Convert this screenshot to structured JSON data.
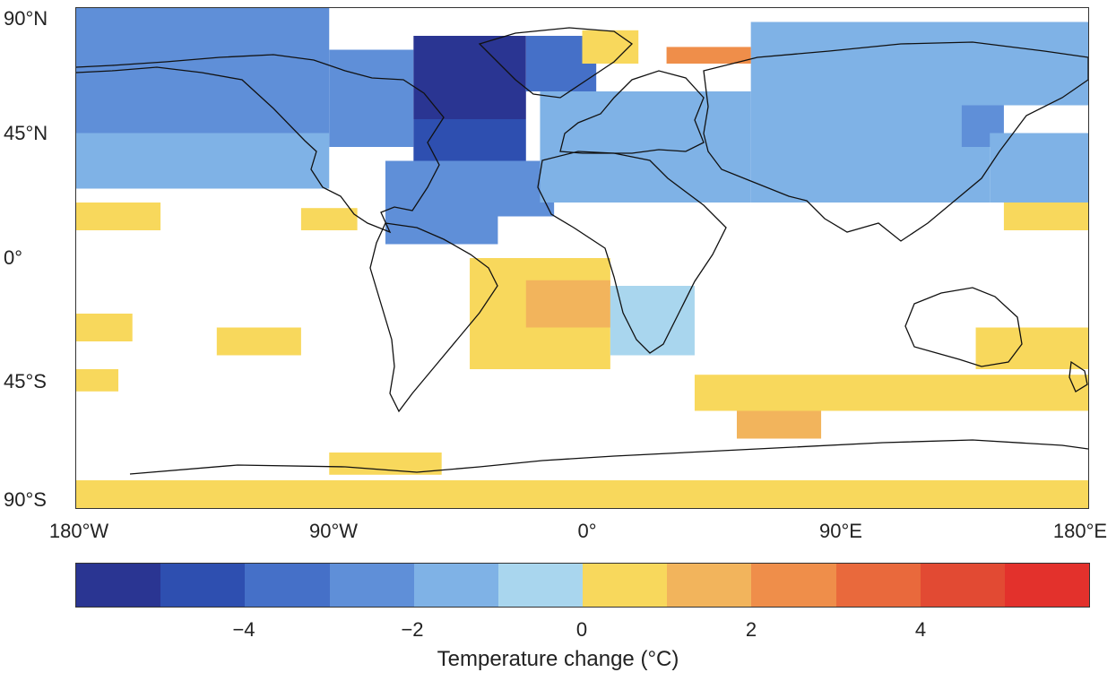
{
  "map": {
    "lat_labels": [
      "90°N",
      "45°N",
      "0°",
      "45°S",
      "90°S"
    ],
    "lon_labels": [
      "180°W",
      "90°W",
      "0°",
      "90°E",
      "180°E"
    ]
  },
  "legend": {
    "title": "Temperature change (°C)",
    "tick_labels": [
      "−4",
      "−2",
      "0",
      "2",
      "4"
    ],
    "colors": [
      "#2a3592",
      "#2e4fb0",
      "#4570c8",
      "#5f8fd8",
      "#7fb2e6",
      "#a9d6ee",
      "#f8d85c",
      "#f2b45c",
      "#ef8e4a",
      "#e9693c",
      "#e24a33",
      "#e3312c"
    ]
  },
  "chart_data": {
    "type": "heatmap",
    "title": "",
    "colorbar_label": "Temperature change (°C)",
    "colorbar_bins": [
      -6,
      -5,
      -4,
      -3,
      -2,
      -1,
      0,
      1,
      2,
      3,
      4,
      5,
      6
    ],
    "xlim": [
      -180,
      180
    ],
    "ylim": [
      -90,
      90
    ],
    "regions": [
      {
        "lon": [
          -180,
          -90
        ],
        "lat": [
          45,
          90
        ],
        "value": -2.5
      },
      {
        "lon": [
          -180,
          -90
        ],
        "lat": [
          25,
          45
        ],
        "value": -1.5
      },
      {
        "lon": [
          -90,
          -60
        ],
        "lat": [
          40,
          75
        ],
        "value": -3
      },
      {
        "lon": [
          -60,
          -20
        ],
        "lat": [
          50,
          80
        ],
        "value": -5.5
      },
      {
        "lon": [
          -60,
          -20
        ],
        "lat": [
          35,
          50
        ],
        "value": -4.5
      },
      {
        "lon": [
          -70,
          -10
        ],
        "lat": [
          15,
          35
        ],
        "value": -3
      },
      {
        "lon": [
          -70,
          -30
        ],
        "lat": [
          5,
          15
        ],
        "value": -2.5
      },
      {
        "lon": [
          -20,
          5
        ],
        "lat": [
          60,
          80
        ],
        "value": -4
      },
      {
        "lon": [
          0,
          20
        ],
        "lat": [
          70,
          82
        ],
        "value": 0
      },
      {
        "lon": [
          -15,
          60
        ],
        "lat": [
          20,
          60
        ],
        "value": -2
      },
      {
        "lon": [
          60,
          180
        ],
        "lat": [
          55,
          85
        ],
        "value": -1.5
      },
      {
        "lon": [
          60,
          145
        ],
        "lat": [
          20,
          55
        ],
        "value": -2
      },
      {
        "lon": [
          135,
          150
        ],
        "lat": [
          40,
          55
        ],
        "value": -3
      },
      {
        "lon": [
          145,
          180
        ],
        "lat": [
          20,
          45
        ],
        "value": -1.5
      },
      {
        "lon": [
          -180,
          -150
        ],
        "lat": [
          10,
          20
        ],
        "value": 0.5
      },
      {
        "lon": [
          150,
          180
        ],
        "lat": [
          10,
          20
        ],
        "value": 0.5
      },
      {
        "lon": [
          -100,
          -80
        ],
        "lat": [
          10,
          18
        ],
        "value": 0.5
      },
      {
        "lon": [
          -40,
          10
        ],
        "lat": [
          -40,
          0
        ],
        "value": 0.5
      },
      {
        "lon": [
          -20,
          10
        ],
        "lat": [
          -25,
          -8
        ],
        "value": 1.5
      },
      {
        "lon": [
          10,
          40
        ],
        "lat": [
          -35,
          -10
        ],
        "value": -1
      },
      {
        "lon": [
          -130,
          -100
        ],
        "lat": [
          -35,
          -25
        ],
        "value": 0.5
      },
      {
        "lon": [
          -180,
          -160
        ],
        "lat": [
          -30,
          -20
        ],
        "value": 0.5
      },
      {
        "lon": [
          -180,
          -165
        ],
        "lat": [
          -48,
          -40
        ],
        "value": 0.5
      },
      {
        "lon": [
          40,
          180
        ],
        "lat": [
          -55,
          -42
        ],
        "value": 0.5
      },
      {
        "lon": [
          55,
          85
        ],
        "lat": [
          -65,
          -55
        ],
        "value": 1.5
      },
      {
        "lon": [
          140,
          180
        ],
        "lat": [
          -40,
          -25
        ],
        "value": 0.5
      },
      {
        "lon": [
          -180,
          180
        ],
        "lat": [
          -90,
          -80
        ],
        "value": 0.5
      },
      {
        "lon": [
          -90,
          -50
        ],
        "lat": [
          -78,
          -70
        ],
        "value": 0.5
      },
      {
        "lon": [
          30,
          60
        ],
        "lat": [
          70,
          76
        ],
        "value": 2
      }
    ]
  }
}
